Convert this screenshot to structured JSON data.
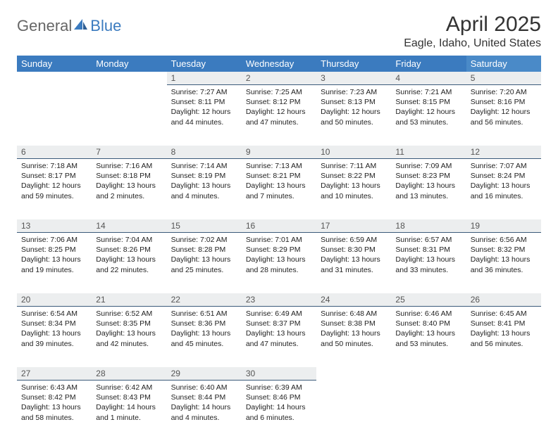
{
  "brand": {
    "part1": "General",
    "part2": "Blue"
  },
  "title": "April 2025",
  "location": "Eagle, Idaho, United States",
  "colors": {
    "header_bg": "#3b7bbf",
    "header_bg_sat": "#4a8ac8",
    "daynum_bg": "#eceeef",
    "daynum_border": "#3b5a7a",
    "text": "#222222",
    "brand_gray": "#666666",
    "brand_blue": "#3b7bbf"
  },
  "weekdays": [
    "Sunday",
    "Monday",
    "Tuesday",
    "Wednesday",
    "Thursday",
    "Friday",
    "Saturday"
  ],
  "weeks": [
    [
      null,
      null,
      {
        "n": "1",
        "sr": "Sunrise: 7:27 AM",
        "ss": "Sunset: 8:11 PM",
        "dl1": "Daylight: 12 hours",
        "dl2": "and 44 minutes."
      },
      {
        "n": "2",
        "sr": "Sunrise: 7:25 AM",
        "ss": "Sunset: 8:12 PM",
        "dl1": "Daylight: 12 hours",
        "dl2": "and 47 minutes."
      },
      {
        "n": "3",
        "sr": "Sunrise: 7:23 AM",
        "ss": "Sunset: 8:13 PM",
        "dl1": "Daylight: 12 hours",
        "dl2": "and 50 minutes."
      },
      {
        "n": "4",
        "sr": "Sunrise: 7:21 AM",
        "ss": "Sunset: 8:15 PM",
        "dl1": "Daylight: 12 hours",
        "dl2": "and 53 minutes."
      },
      {
        "n": "5",
        "sr": "Sunrise: 7:20 AM",
        "ss": "Sunset: 8:16 PM",
        "dl1": "Daylight: 12 hours",
        "dl2": "and 56 minutes."
      }
    ],
    [
      {
        "n": "6",
        "sr": "Sunrise: 7:18 AM",
        "ss": "Sunset: 8:17 PM",
        "dl1": "Daylight: 12 hours",
        "dl2": "and 59 minutes."
      },
      {
        "n": "7",
        "sr": "Sunrise: 7:16 AM",
        "ss": "Sunset: 8:18 PM",
        "dl1": "Daylight: 13 hours",
        "dl2": "and 2 minutes."
      },
      {
        "n": "8",
        "sr": "Sunrise: 7:14 AM",
        "ss": "Sunset: 8:19 PM",
        "dl1": "Daylight: 13 hours",
        "dl2": "and 4 minutes."
      },
      {
        "n": "9",
        "sr": "Sunrise: 7:13 AM",
        "ss": "Sunset: 8:21 PM",
        "dl1": "Daylight: 13 hours",
        "dl2": "and 7 minutes."
      },
      {
        "n": "10",
        "sr": "Sunrise: 7:11 AM",
        "ss": "Sunset: 8:22 PM",
        "dl1": "Daylight: 13 hours",
        "dl2": "and 10 minutes."
      },
      {
        "n": "11",
        "sr": "Sunrise: 7:09 AM",
        "ss": "Sunset: 8:23 PM",
        "dl1": "Daylight: 13 hours",
        "dl2": "and 13 minutes."
      },
      {
        "n": "12",
        "sr": "Sunrise: 7:07 AM",
        "ss": "Sunset: 8:24 PM",
        "dl1": "Daylight: 13 hours",
        "dl2": "and 16 minutes."
      }
    ],
    [
      {
        "n": "13",
        "sr": "Sunrise: 7:06 AM",
        "ss": "Sunset: 8:25 PM",
        "dl1": "Daylight: 13 hours",
        "dl2": "and 19 minutes."
      },
      {
        "n": "14",
        "sr": "Sunrise: 7:04 AM",
        "ss": "Sunset: 8:26 PM",
        "dl1": "Daylight: 13 hours",
        "dl2": "and 22 minutes."
      },
      {
        "n": "15",
        "sr": "Sunrise: 7:02 AM",
        "ss": "Sunset: 8:28 PM",
        "dl1": "Daylight: 13 hours",
        "dl2": "and 25 minutes."
      },
      {
        "n": "16",
        "sr": "Sunrise: 7:01 AM",
        "ss": "Sunset: 8:29 PM",
        "dl1": "Daylight: 13 hours",
        "dl2": "and 28 minutes."
      },
      {
        "n": "17",
        "sr": "Sunrise: 6:59 AM",
        "ss": "Sunset: 8:30 PM",
        "dl1": "Daylight: 13 hours",
        "dl2": "and 31 minutes."
      },
      {
        "n": "18",
        "sr": "Sunrise: 6:57 AM",
        "ss": "Sunset: 8:31 PM",
        "dl1": "Daylight: 13 hours",
        "dl2": "and 33 minutes."
      },
      {
        "n": "19",
        "sr": "Sunrise: 6:56 AM",
        "ss": "Sunset: 8:32 PM",
        "dl1": "Daylight: 13 hours",
        "dl2": "and 36 minutes."
      }
    ],
    [
      {
        "n": "20",
        "sr": "Sunrise: 6:54 AM",
        "ss": "Sunset: 8:34 PM",
        "dl1": "Daylight: 13 hours",
        "dl2": "and 39 minutes."
      },
      {
        "n": "21",
        "sr": "Sunrise: 6:52 AM",
        "ss": "Sunset: 8:35 PM",
        "dl1": "Daylight: 13 hours",
        "dl2": "and 42 minutes."
      },
      {
        "n": "22",
        "sr": "Sunrise: 6:51 AM",
        "ss": "Sunset: 8:36 PM",
        "dl1": "Daylight: 13 hours",
        "dl2": "and 45 minutes."
      },
      {
        "n": "23",
        "sr": "Sunrise: 6:49 AM",
        "ss": "Sunset: 8:37 PM",
        "dl1": "Daylight: 13 hours",
        "dl2": "and 47 minutes."
      },
      {
        "n": "24",
        "sr": "Sunrise: 6:48 AM",
        "ss": "Sunset: 8:38 PM",
        "dl1": "Daylight: 13 hours",
        "dl2": "and 50 minutes."
      },
      {
        "n": "25",
        "sr": "Sunrise: 6:46 AM",
        "ss": "Sunset: 8:40 PM",
        "dl1": "Daylight: 13 hours",
        "dl2": "and 53 minutes."
      },
      {
        "n": "26",
        "sr": "Sunrise: 6:45 AM",
        "ss": "Sunset: 8:41 PM",
        "dl1": "Daylight: 13 hours",
        "dl2": "and 56 minutes."
      }
    ],
    [
      {
        "n": "27",
        "sr": "Sunrise: 6:43 AM",
        "ss": "Sunset: 8:42 PM",
        "dl1": "Daylight: 13 hours",
        "dl2": "and 58 minutes."
      },
      {
        "n": "28",
        "sr": "Sunrise: 6:42 AM",
        "ss": "Sunset: 8:43 PM",
        "dl1": "Daylight: 14 hours",
        "dl2": "and 1 minute."
      },
      {
        "n": "29",
        "sr": "Sunrise: 6:40 AM",
        "ss": "Sunset: 8:44 PM",
        "dl1": "Daylight: 14 hours",
        "dl2": "and 4 minutes."
      },
      {
        "n": "30",
        "sr": "Sunrise: 6:39 AM",
        "ss": "Sunset: 8:46 PM",
        "dl1": "Daylight: 14 hours",
        "dl2": "and 6 minutes."
      },
      null,
      null,
      null
    ]
  ]
}
